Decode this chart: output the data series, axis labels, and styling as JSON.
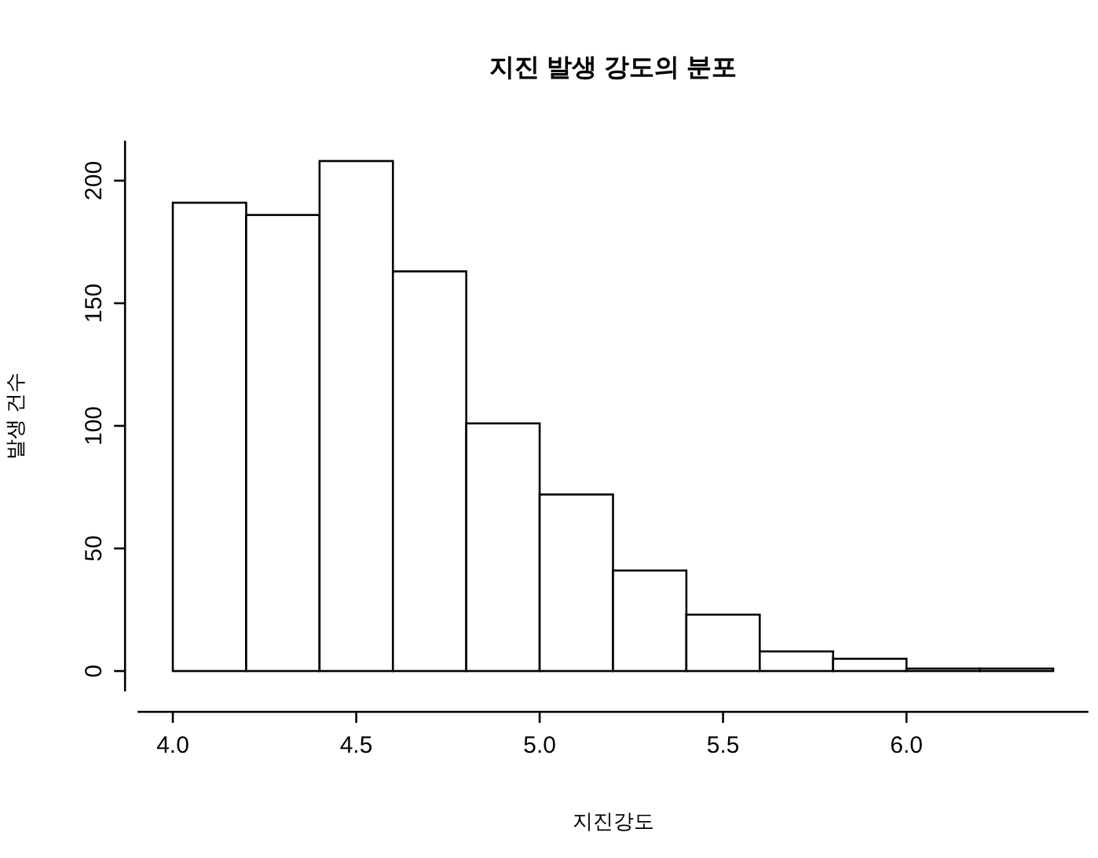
{
  "chart_data": {
    "type": "histogram",
    "title": "지진 발생 강도의 분포",
    "xlabel": "지진강도",
    "ylabel": "발생 건수",
    "bins": [
      4.0,
      4.2,
      4.4,
      4.6,
      4.8,
      5.0,
      5.2,
      5.4,
      5.6,
      5.8,
      6.0,
      6.2,
      6.4
    ],
    "values": [
      191,
      186,
      208,
      163,
      101,
      72,
      41,
      23,
      8,
      5,
      1,
      1
    ],
    "color": "#ffffff",
    "xlim": [
      3.904,
      6.496
    ],
    "ylim": [
      -8.32,
      216.32
    ],
    "xticks": [
      {
        "value": 4,
        "label": "4.0"
      },
      {
        "value": 4.5,
        "label": "4.5"
      },
      {
        "value": 5,
        "label": "5.0"
      },
      {
        "value": 5.5,
        "label": "5.5"
      },
      {
        "value": 6,
        "label": "6.0"
      }
    ],
    "yticks": [
      0,
      50,
      100,
      150,
      200
    ]
  }
}
